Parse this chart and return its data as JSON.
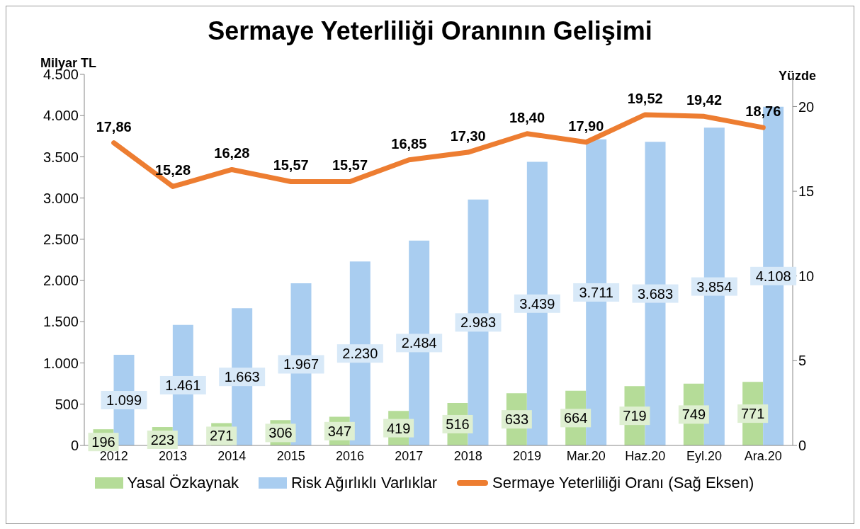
{
  "chart_data": {
    "type": "bar",
    "title": "Sermaye Yeterliliği Oranının Gelişimi",
    "ylabel": "Milyar TL",
    "y2label": "Yüzde",
    "categories": [
      "2012",
      "2013",
      "2014",
      "2015",
      "2016",
      "2017",
      "2018",
      "2019",
      "Mar.20",
      "Haz.20",
      "Eyl.20",
      "Ara.20"
    ],
    "ylim": [
      0,
      4500
    ],
    "yticks": [
      0,
      {
        "value": 500,
        "label": "500"
      },
      {
        "value": 1000,
        "label": "1.000"
      },
      {
        "value": 1500,
        "label": "1.500"
      },
      {
        "value": 2000,
        "label": "2.000"
      },
      {
        "value": 2500,
        "label": "2.500"
      },
      {
        "value": 3000,
        "label": "3.000"
      },
      {
        "value": 3500,
        "label": "3.500"
      },
      {
        "value": 4000,
        "label": "4.000"
      },
      {
        "value": 4500,
        "label": "4.500"
      }
    ],
    "y2lim": [
      0,
      21.9
    ],
    "y2ticks": [
      0,
      5,
      10,
      15,
      20
    ],
    "grid": false,
    "legend": "bottom",
    "series": [
      {
        "name": "Yasal Özkaynak",
        "color": "#b5dc98",
        "values": [
          196,
          223,
          271,
          306,
          347,
          419,
          516,
          633,
          664,
          719,
          749,
          771
        ],
        "value_labels": [
          "196",
          "223",
          "271",
          "306",
          "347",
          "419",
          "516",
          "633",
          "664",
          "719",
          "749",
          "771"
        ]
      },
      {
        "name": "Risk Ağırlıklı Varlıklar",
        "color": "#a9cdf0",
        "values": [
          1099,
          1461,
          1663,
          1967,
          2230,
          2484,
          2983,
          3439,
          3711,
          3683,
          3854,
          4108
        ],
        "value_labels": [
          "1.099",
          "1.461",
          "1.663",
          "1.967",
          "2.230",
          "2.484",
          "2.983",
          "3.439",
          "3.711",
          "3.683",
          "3.854",
          "4.108"
        ]
      },
      {
        "name": "Sermaye Yeterliliği Oranı (Sağ Eksen)",
        "type": "line",
        "axis": "y2",
        "color": "#ed7d31",
        "values": [
          17.86,
          15.28,
          16.28,
          15.57,
          15.57,
          16.85,
          17.3,
          18.4,
          17.9,
          19.52,
          19.42,
          18.76
        ],
        "value_labels": [
          "17,86",
          "15,28",
          "16,28",
          "15,57",
          "15,57",
          "16,85",
          "17,30",
          "18,40",
          "17,90",
          "19,52",
          "19,42",
          "18,76"
        ]
      }
    ]
  }
}
